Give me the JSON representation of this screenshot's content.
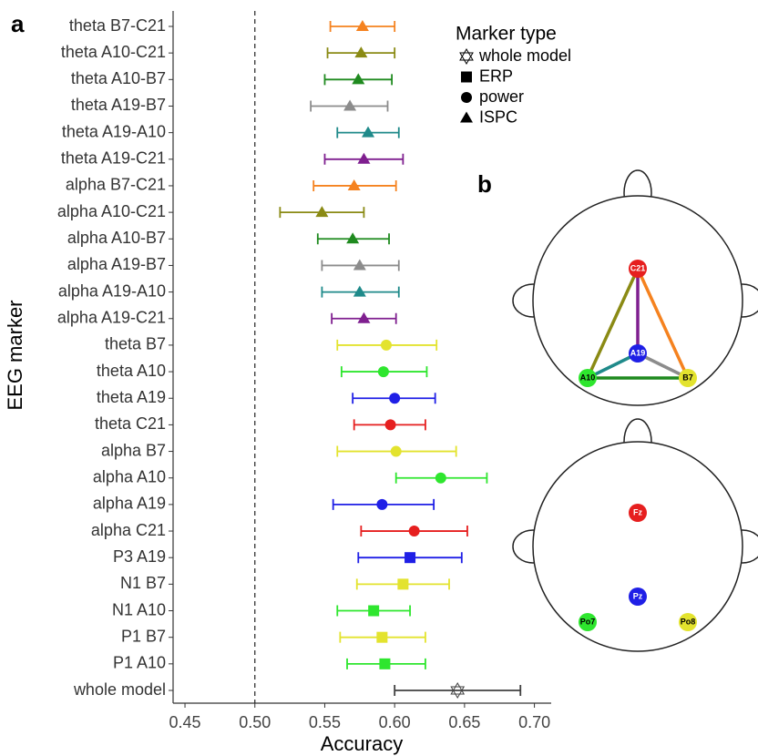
{
  "chart_data": {
    "type": "forest",
    "x_label": "Accuracy",
    "y_label": "EEG marker",
    "categories": [
      "theta B7-C21",
      "theta A10-C21",
      "theta A10-B7",
      "theta A19-B7",
      "theta A19-A10",
      "theta A19-C21",
      "alpha B7-C21",
      "alpha A10-C21",
      "alpha A10-B7",
      "alpha A19-B7",
      "alpha A19-A10",
      "alpha A19-C21",
      "theta B7",
      "theta A10",
      "theta A19",
      "theta C21",
      "alpha B7",
      "alpha A10",
      "alpha A19",
      "alpha C21",
      "P3 A19",
      "N1 B7",
      "N1 A10",
      "P1 B7",
      "P1 A10",
      "whole model"
    ],
    "values": [
      0.577,
      0.576,
      0.574,
      0.568,
      0.581,
      0.578,
      0.571,
      0.548,
      0.57,
      0.575,
      0.575,
      0.578,
      0.594,
      0.592,
      0.6,
      0.597,
      0.601,
      0.633,
      0.591,
      0.614,
      0.611,
      0.606,
      0.585,
      0.591,
      0.593,
      0.645
    ],
    "lower": [
      0.554,
      0.552,
      0.55,
      0.54,
      0.559,
      0.55,
      0.542,
      0.518,
      0.545,
      0.548,
      0.548,
      0.555,
      0.559,
      0.562,
      0.57,
      0.571,
      0.559,
      0.601,
      0.556,
      0.576,
      0.574,
      0.573,
      0.559,
      0.561,
      0.566,
      0.6
    ],
    "upper": [
      0.6,
      0.6,
      0.598,
      0.595,
      0.603,
      0.606,
      0.601,
      0.578,
      0.596,
      0.603,
      0.603,
      0.601,
      0.63,
      0.623,
      0.629,
      0.622,
      0.644,
      0.666,
      0.628,
      0.652,
      0.648,
      0.639,
      0.611,
      0.622,
      0.622,
      0.69
    ],
    "marker_types": [
      "ISPC",
      "ISPC",
      "ISPC",
      "ISPC",
      "ISPC",
      "ISPC",
      "ISPC",
      "ISPC",
      "ISPC",
      "ISPC",
      "ISPC",
      "ISPC",
      "power",
      "power",
      "power",
      "power",
      "power",
      "power",
      "power",
      "power",
      "ERP",
      "ERP",
      "ERP",
      "ERP",
      "ERP",
      "whole model"
    ],
    "colors": [
      "#f5821f",
      "#8a8a14",
      "#1f8a1f",
      "#8c8c8c",
      "#1f8a8a",
      "#7f1f8f",
      "#f5821f",
      "#8a8a14",
      "#1f8a1f",
      "#8c8c8c",
      "#1f8a8a",
      "#7f1f8f",
      "#e3e32e",
      "#2ee62e",
      "#1f1fe6",
      "#e61f1f",
      "#e3e32e",
      "#2ee62e",
      "#1f1fe6",
      "#e61f1f",
      "#1f1fe6",
      "#e3e32e",
      "#2ee62e",
      "#e3e32e",
      "#2ee62e",
      "#404040"
    ],
    "xlim": [
      0.4415,
      0.712
    ],
    "xticks": [
      0.45,
      {
        "value": 0.5,
        "label": "0.50"
      },
      0.55,
      {
        "value": 0.6,
        "label": "0.60"
      },
      0.65,
      {
        "value": 0.7,
        "label": "0.70"
      }
    ],
    "reference_line": 0.5,
    "legend": {
      "title": "Marker type",
      "entries": [
        "whole model",
        "ERP",
        "power",
        "ISPC"
      ]
    }
  },
  "panel_labels": [
    "a",
    "b"
  ],
  "head_models": [
    {
      "nodes": [
        "C21",
        "A19",
        "A10",
        "B7"
      ]
    },
    {
      "nodes": [
        "Fz",
        "Pz",
        "Po7",
        "Po8"
      ]
    }
  ]
}
